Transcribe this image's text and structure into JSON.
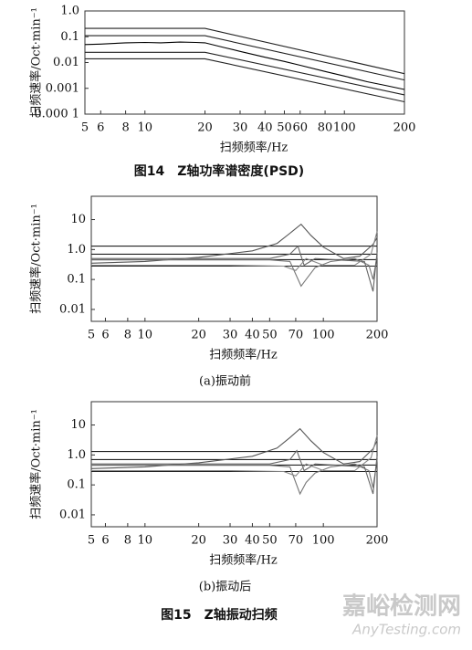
{
  "chart_data": [
    {
      "type": "line",
      "xscale": "log",
      "yscale": "log",
      "xlabel": "扫频频率/Hz",
      "ylabel": "扫频速率/Oct·min⁻¹",
      "xlim": [
        5,
        200
      ],
      "ylim": [
        0.0001,
        1
      ],
      "xticks": [
        5,
        6,
        8,
        10,
        20,
        30,
        40,
        50,
        60,
        80,
        100,
        200
      ],
      "yticks": [
        {
          "value": 0.0001,
          "label": "0.000 1"
        },
        0.001,
        0.01,
        0.1,
        {
          "value": 1,
          "label": "1.0"
        }
      ],
      "series": [
        {
          "color": "#222",
          "x": [
            5,
            20,
            200
          ],
          "values": [
            0.21,
            0.21,
            0.0037
          ]
        },
        {
          "color": "#222",
          "x": [
            5,
            20,
            200
          ],
          "values": [
            0.11,
            0.11,
            0.0021
          ]
        },
        {
          "color": "#222",
          "x": [
            5,
            20,
            200
          ],
          "values": [
            0.025,
            0.025,
            0.00056
          ]
        },
        {
          "color": "#222",
          "x": [
            5,
            20,
            200
          ],
          "values": [
            0.014,
            0.014,
            0.0003
          ]
        },
        {
          "color": "#000",
          "x": [
            5,
            6,
            7,
            8,
            10,
            12,
            15,
            18,
            20,
            25,
            30,
            40,
            50,
            60,
            80,
            100,
            130,
            160,
            200
          ],
          "values": [
            0.05,
            0.052,
            0.055,
            0.058,
            0.06,
            0.058,
            0.062,
            0.06,
            0.058,
            0.038,
            0.027,
            0.016,
            0.011,
            0.0078,
            0.0045,
            0.003,
            0.0018,
            0.0013,
            0.0009
          ]
        }
      ]
    },
    {
      "type": "line",
      "xscale": "log",
      "yscale": "log",
      "xlabel": "扫频频率/Hz",
      "ylabel": "扫频速率/Oct·min⁻¹",
      "caption": "(a)振动前",
      "xlim": [
        5,
        200
      ],
      "ylim": [
        0.004,
        60
      ],
      "xticks": [
        5,
        6,
        8,
        10,
        20,
        30,
        40,
        50,
        70,
        100,
        200
      ],
      "yticks": [
        0.01,
        0.1,
        {
          "value": 1,
          "label": "1.0"
        },
        10
      ],
      "series": [
        {
          "color": "#222",
          "x": [
            5,
            200
          ],
          "values": [
            1.3,
            1.3
          ]
        },
        {
          "color": "#222",
          "x": [
            5,
            200
          ],
          "values": [
            0.7,
            0.7
          ]
        },
        {
          "color": "#222",
          "x": [
            5,
            200
          ],
          "values": [
            0.46,
            0.46
          ]
        },
        {
          "color": "#222",
          "x": [
            5,
            200
          ],
          "values": [
            0.28,
            0.28
          ]
        },
        {
          "color": "#555",
          "x": [
            5,
            10,
            20,
            40,
            55,
            65,
            75,
            85,
            100,
            130,
            160,
            190,
            200
          ],
          "values": [
            0.35,
            0.4,
            0.55,
            0.9,
            1.6,
            3.5,
            7,
            3,
            1.2,
            0.5,
            0.6,
            1.5,
            2.5
          ]
        },
        {
          "color": "#777",
          "x": [
            5,
            20,
            50,
            65,
            75,
            80,
            90,
            110,
            150,
            180,
            190,
            200
          ],
          "values": [
            0.45,
            0.45,
            0.45,
            0.4,
            0.06,
            0.1,
            0.25,
            0.4,
            0.5,
            0.3,
            0.1,
            0.6
          ]
        },
        {
          "color": "#666",
          "x": [
            5,
            20,
            50,
            65,
            72,
            78,
            90,
            120,
            170,
            190,
            200
          ],
          "values": [
            0.5,
            0.5,
            0.5,
            0.7,
            1.3,
            0.3,
            0.5,
            0.45,
            0.4,
            0.04,
            0.8
          ]
        },
        {
          "color": "#888",
          "x": [
            5,
            30,
            60,
            70,
            80,
            100,
            150,
            185,
            200
          ],
          "values": [
            0.3,
            0.3,
            0.28,
            0.2,
            0.5,
            0.3,
            0.3,
            0.7,
            4
          ]
        }
      ]
    },
    {
      "type": "line",
      "xscale": "log",
      "yscale": "log",
      "xlabel": "扫频频率/Hz",
      "ylabel": "扫频速率/Oct·min⁻¹",
      "caption": "(b)振动后",
      "xlim": [
        5,
        200
      ],
      "ylim": [
        0.004,
        60
      ],
      "xticks": [
        5,
        6,
        8,
        10,
        20,
        30,
        40,
        50,
        70,
        100,
        200
      ],
      "yticks": [
        0.01,
        0.1,
        {
          "value": 1,
          "label": "1.0"
        },
        10
      ],
      "series": [
        {
          "color": "#222",
          "x": [
            5,
            200
          ],
          "values": [
            1.3,
            1.3
          ]
        },
        {
          "color": "#222",
          "x": [
            5,
            200
          ],
          "values": [
            0.7,
            0.7
          ]
        },
        {
          "color": "#222",
          "x": [
            5,
            200
          ],
          "values": [
            0.46,
            0.46
          ]
        },
        {
          "color": "#222",
          "x": [
            5,
            200
          ],
          "values": [
            0.28,
            0.28
          ]
        },
        {
          "color": "#555",
          "x": [
            5,
            10,
            20,
            40,
            55,
            65,
            74,
            85,
            100,
            130,
            160,
            190,
            200
          ],
          "values": [
            0.35,
            0.4,
            0.55,
            0.9,
            1.7,
            3.8,
            7.5,
            3,
            1.2,
            0.5,
            0.6,
            1.6,
            3
          ]
        },
        {
          "color": "#777",
          "x": [
            5,
            20,
            50,
            65,
            74,
            80,
            90,
            110,
            150,
            180,
            190,
            200
          ],
          "values": [
            0.45,
            0.45,
            0.45,
            0.4,
            0.05,
            0.12,
            0.25,
            0.4,
            0.5,
            0.3,
            0.08,
            0.7
          ]
        },
        {
          "color": "#666",
          "x": [
            5,
            20,
            50,
            65,
            71,
            78,
            90,
            120,
            170,
            190,
            200
          ],
          "values": [
            0.5,
            0.5,
            0.5,
            0.7,
            1.4,
            0.3,
            0.5,
            0.45,
            0.4,
            0.05,
            0.9
          ]
        },
        {
          "color": "#888",
          "x": [
            5,
            30,
            60,
            70,
            80,
            100,
            150,
            185,
            200
          ],
          "values": [
            0.3,
            0.3,
            0.28,
            0.2,
            0.5,
            0.3,
            0.3,
            0.8,
            4.5
          ]
        }
      ]
    }
  ],
  "figures": [
    "图14　Z轴功率谱密度(PSD)",
    "图15　Z轴振动扫频"
  ],
  "watermark": {
    "cn": "嘉峪检测网",
    "en": "AnyTesting.com"
  }
}
